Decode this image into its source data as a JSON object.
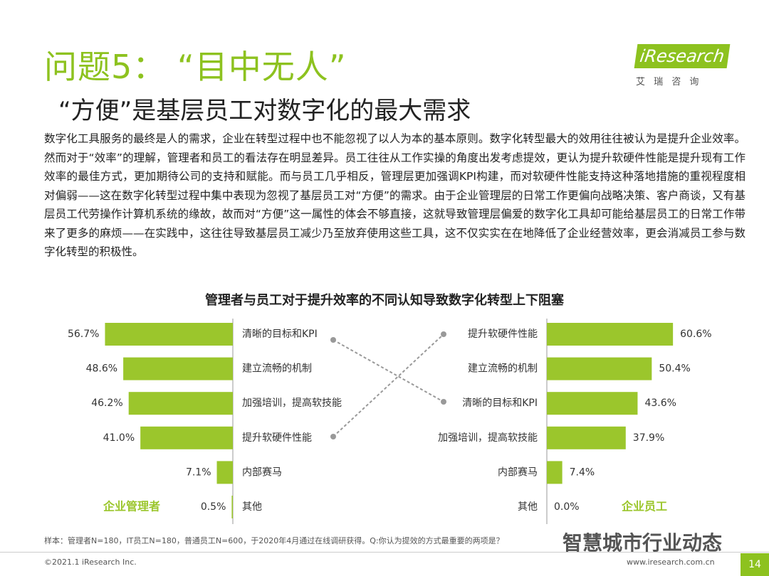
{
  "header": {
    "title": "问题5： “目中无人”",
    "subtitle": "“方便”是基层员工对数字化的最大需求",
    "logo": "iResearch",
    "logo_cn": "艾 瑞 咨 询"
  },
  "body": "数字化工具服务的最终是人的需求，企业在转型过程中也不能忽视了以人为本的基本原则。数字化转型最大的效用往往被认为是提升企业效率。然而对于“效率”的理解，管理者和员工的看法存在明显差异。员工往往从工作实操的角度出发考虑提效，更认为提升软硬件性能是提升现有工作效率的最佳方式，更加期待公司的支持和赋能。而与员工几乎相反，管理层更加强调KPI构建，而对软硬件性能支持这种落地措施的重视程度相对偏弱——这在数字化转型过程中集中表现为忽视了基层员工对“方便”的需求。由于企业管理层的日常工作更偏向战略决策、客户商谈，又有基层员工代劳操作计算机系统的缘故，故而对“方便”这一属性的体会不够直接，这就导致管理层偏爱的数字化工具却可能给基层员工的日常工作带来了更多的麻烦——在实践中，这往往导致基层员工减少乃至放弃使用这些工具，这不仅实实在在地降低了企业经营效率，更会消减员工参与数字化转型的积极性。",
  "figure_title": "管理者与员工对于提升效率的不同认知导致数字化转型上下阻塞",
  "chart_data": [
    {
      "type": "bar",
      "label": "企业管理者",
      "color": "#9bc62c",
      "categories": [
        "清晰的目标和KPI",
        "建立流畅的机制",
        "加强培训，提高软技能",
        "提升软硬件性能",
        "内部赛马",
        "其他"
      ],
      "values": [
        56.7,
        48.6,
        46.2,
        41.0,
        7.1,
        0.5
      ],
      "value_labels": [
        "56.7%",
        "48.6%",
        "46.2%",
        "41.0%",
        "7.1%",
        "0.5%"
      ],
      "xlim": [
        0,
        60
      ]
    },
    {
      "type": "bar",
      "label": "企业员工",
      "color": "#9bc62c",
      "categories": [
        "提升软硬件性能",
        "建立流畅的机制",
        "清晰的目标和KPI",
        "加强培训，提高软技能",
        "内部赛马",
        "其他"
      ],
      "values": [
        60.6,
        50.4,
        43.6,
        37.9,
        7.4,
        0.0
      ],
      "value_labels": [
        "60.6%",
        "50.4%",
        "43.6%",
        "37.9%",
        "7.4%",
        "0.0%"
      ],
      "xlim": [
        0,
        65
      ]
    }
  ],
  "footer": {
    "note": "样本：管理者N=180，IT员工N=180，普通员工N=600，于2020年4月通过在线调研获得。Q:你认为提效的方式最重要的两项是？",
    "copyright": "©2021.1 iResearch Inc.",
    "url": "www.iresearch.com.cn",
    "page": "14",
    "watermark": "智慧城市行业动态"
  }
}
